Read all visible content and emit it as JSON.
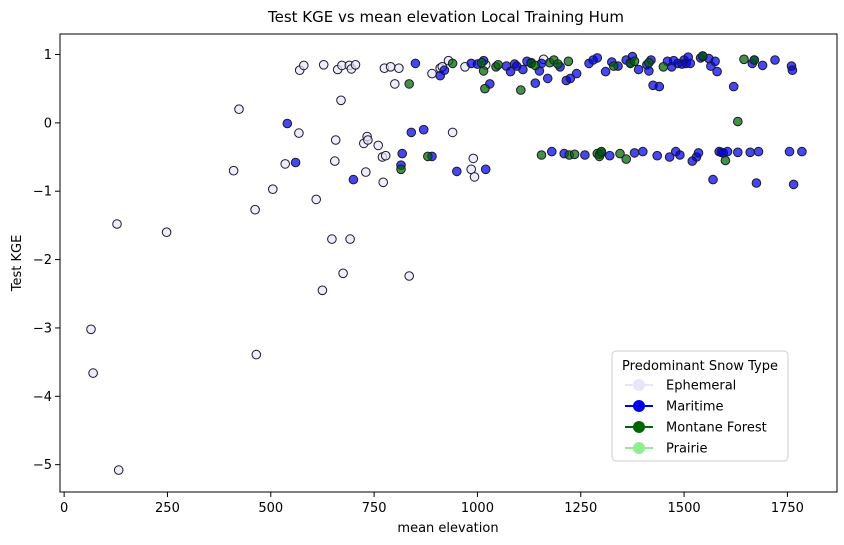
{
  "chart_data": {
    "type": "scatter",
    "title": "Test KGE vs mean elevation Local Training Hum",
    "xlabel": "mean elevation",
    "ylabel": "Test KGE",
    "xlim": [
      -10,
      1870
    ],
    "ylim": [
      -5.4,
      1.3
    ],
    "xticks": [
      0,
      250,
      500,
      750,
      1000,
      1250,
      1500,
      1750
    ],
    "yticks": [
      1,
      0,
      -1,
      -2,
      -3,
      -4,
      -5
    ],
    "xtick_labels": [
      "0",
      "250",
      "500",
      "750",
      "1000",
      "1250",
      "1500",
      "1750"
    ],
    "ytick_labels": [
      "1",
      "0",
      "−1",
      "−2",
      "−3",
      "−4",
      "−5"
    ],
    "grid": false,
    "legend": {
      "title": "Predominant Snow Type",
      "placement": "bottom-right",
      "entries": [
        "Ephemeral",
        "Maritime",
        "Montane Forest",
        "Prairie"
      ]
    },
    "colors": {
      "Ephemeral": "#e6e6fa",
      "Maritime": "#0000e6",
      "Montane Forest": "#006400",
      "Prairie": "#90ee90",
      "edge": "#1a1a2e"
    },
    "series": [
      {
        "name": "Ephemeral",
        "color": "#e6e6fa",
        "points": [
          [
            65,
            -3.02
          ],
          [
            70,
            -3.66
          ],
          [
            128,
            -1.48
          ],
          [
            132,
            -5.08
          ],
          [
            248,
            -1.6
          ],
          [
            410,
            -0.7
          ],
          [
            423,
            0.2
          ],
          [
            462,
            -1.27
          ],
          [
            465,
            -3.39
          ],
          [
            505,
            -0.97
          ],
          [
            535,
            -0.6
          ],
          [
            568,
            -0.15
          ],
          [
            570,
            0.77
          ],
          [
            580,
            0.84
          ],
          [
            610,
            -1.12
          ],
          [
            625,
            -2.45
          ],
          [
            628,
            0.85
          ],
          [
            648,
            -1.7
          ],
          [
            655,
            -0.56
          ],
          [
            657,
            -0.25
          ],
          [
            662,
            0.78
          ],
          [
            670,
            0.33
          ],
          [
            672,
            0.84
          ],
          [
            675,
            -2.2
          ],
          [
            690,
            0.84
          ],
          [
            692,
            -1.7
          ],
          [
            695,
            0.79
          ],
          [
            705,
            0.85
          ],
          [
            725,
            -0.3
          ],
          [
            730,
            -0.72
          ],
          [
            733,
            -0.2
          ],
          [
            735,
            -0.25
          ],
          [
            760,
            -0.33
          ],
          [
            770,
            -0.5
          ],
          [
            772,
            -0.87
          ],
          [
            775,
            0.8
          ],
          [
            778,
            -0.48
          ],
          [
            790,
            0.82
          ],
          [
            800,
            0.57
          ],
          [
            810,
            0.8
          ],
          [
            835,
            -2.24
          ],
          [
            890,
            0.72
          ],
          [
            910,
            0.8
          ],
          [
            915,
            0.82
          ],
          [
            930,
            0.91
          ],
          [
            940,
            -0.14
          ],
          [
            970,
            0.82
          ],
          [
            985,
            -0.68
          ],
          [
            990,
            -0.52
          ],
          [
            993,
            -0.79
          ],
          [
            1020,
            0.85
          ],
          [
            1160,
            0.93
          ]
        ]
      },
      {
        "name": "Maritime",
        "color": "#0000e6",
        "points": [
          [
            540,
            -0.01
          ],
          [
            560,
            -0.58
          ],
          [
            700,
            -0.83
          ],
          [
            815,
            -0.62
          ],
          [
            818,
            -0.45
          ],
          [
            840,
            -0.14
          ],
          [
            850,
            0.87
          ],
          [
            870,
            -0.1
          ],
          [
            890,
            -0.49
          ],
          [
            910,
            0.69
          ],
          [
            920,
            0.77
          ],
          [
            950,
            -0.71
          ],
          [
            985,
            0.87
          ],
          [
            1000,
            0.86
          ],
          [
            1015,
            0.91
          ],
          [
            1020,
            -0.68
          ],
          [
            1030,
            0.57
          ],
          [
            1070,
            0.83
          ],
          [
            1080,
            0.75
          ],
          [
            1090,
            0.86
          ],
          [
            1095,
            0.83
          ],
          [
            1110,
            0.78
          ],
          [
            1120,
            0.9
          ],
          [
            1130,
            0.88
          ],
          [
            1140,
            0.58
          ],
          [
            1150,
            0.76
          ],
          [
            1155,
            0.87
          ],
          [
            1170,
            0.65
          ],
          [
            1180,
            -0.42
          ],
          [
            1200,
            0.82
          ],
          [
            1210,
            -0.45
          ],
          [
            1215,
            0.62
          ],
          [
            1225,
            0.65
          ],
          [
            1240,
            0.72
          ],
          [
            1260,
            -0.47
          ],
          [
            1270,
            0.87
          ],
          [
            1280,
            0.92
          ],
          [
            1290,
            0.95
          ],
          [
            1295,
            -0.46
          ],
          [
            1300,
            -0.44
          ],
          [
            1310,
            0.75
          ],
          [
            1320,
            -0.48
          ],
          [
            1325,
            0.89
          ],
          [
            1340,
            0.83
          ],
          [
            1360,
            0.92
          ],
          [
            1370,
            0.88
          ],
          [
            1375,
            0.97
          ],
          [
            1380,
            -0.44
          ],
          [
            1390,
            0.78
          ],
          [
            1400,
            -0.42
          ],
          [
            1410,
            0.85
          ],
          [
            1415,
            0.76
          ],
          [
            1420,
            0.92
          ],
          [
            1425,
            0.55
          ],
          [
            1435,
            -0.48
          ],
          [
            1440,
            0.53
          ],
          [
            1460,
            0.9
          ],
          [
            1465,
            -0.5
          ],
          [
            1470,
            0.82
          ],
          [
            1475,
            0.91
          ],
          [
            1480,
            -0.42
          ],
          [
            1485,
            0.87
          ],
          [
            1490,
            -0.47
          ],
          [
            1495,
            0.86
          ],
          [
            1500,
            0.92
          ],
          [
            1505,
            0.87
          ],
          [
            1510,
            0.96
          ],
          [
            1515,
            0.87
          ],
          [
            1520,
            -0.56
          ],
          [
            1530,
            -0.5
          ],
          [
            1535,
            -0.44
          ],
          [
            1540,
            0.95
          ],
          [
            1545,
            0.97
          ],
          [
            1560,
            0.94
          ],
          [
            1565,
            0.83
          ],
          [
            1570,
            -0.83
          ],
          [
            1575,
            0.9
          ],
          [
            1580,
            0.75
          ],
          [
            1585,
            -0.42
          ],
          [
            1590,
            -0.43
          ],
          [
            1595,
            -0.44
          ],
          [
            1605,
            -0.42
          ],
          [
            1620,
            0.53
          ],
          [
            1630,
            -0.43
          ],
          [
            1660,
            -0.43
          ],
          [
            1665,
            0.87
          ],
          [
            1670,
            0.92
          ],
          [
            1675,
            -0.88
          ],
          [
            1680,
            -0.42
          ],
          [
            1690,
            0.84
          ],
          [
            1720,
            0.92
          ],
          [
            1755,
            -0.42
          ],
          [
            1760,
            0.83
          ],
          [
            1762,
            0.77
          ],
          [
            1765,
            -0.9
          ],
          [
            1785,
            -0.42
          ]
        ]
      },
      {
        "name": "Montane Forest",
        "color": "#006400",
        "points": [
          [
            815,
            -0.68
          ],
          [
            835,
            0.57
          ],
          [
            880,
            -0.49
          ],
          [
            940,
            0.87
          ],
          [
            1010,
            0.88
          ],
          [
            1015,
            0.76
          ],
          [
            1018,
            0.5
          ],
          [
            1045,
            0.82
          ],
          [
            1050,
            0.85
          ],
          [
            1105,
            0.48
          ],
          [
            1130,
            0.87
          ],
          [
            1140,
            0.84
          ],
          [
            1155,
            -0.47
          ],
          [
            1175,
            0.88
          ],
          [
            1185,
            0.92
          ],
          [
            1195,
            0.86
          ],
          [
            1220,
            0.9
          ],
          [
            1222,
            -0.47
          ],
          [
            1235,
            -0.46
          ],
          [
            1290,
            -0.45
          ],
          [
            1295,
            -0.49
          ],
          [
            1300,
            -0.42
          ],
          [
            1330,
            0.83
          ],
          [
            1345,
            -0.45
          ],
          [
            1360,
            -0.53
          ],
          [
            1370,
            0.87
          ],
          [
            1380,
            0.9
          ],
          [
            1415,
            0.88
          ],
          [
            1450,
            0.82
          ],
          [
            1545,
            0.98
          ],
          [
            1600,
            -0.55
          ],
          [
            1630,
            0.02
          ],
          [
            1645,
            0.93
          ],
          [
            1670,
            0.92
          ]
        ]
      }
    ]
  }
}
